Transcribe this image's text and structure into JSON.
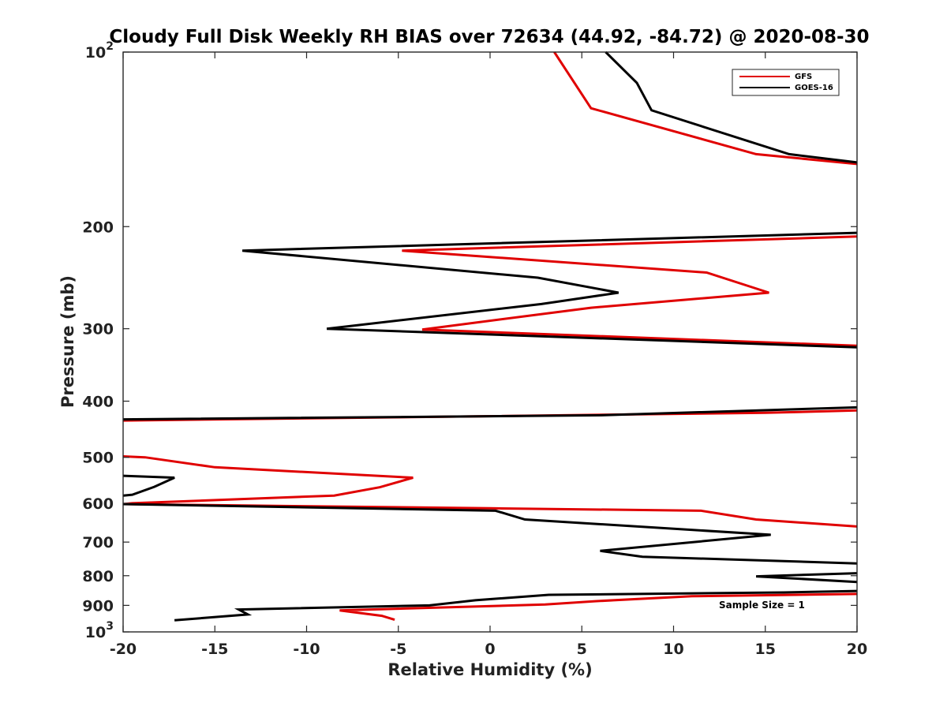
{
  "chart_data": {
    "type": "line",
    "title": "Cloudy Full Disk Weekly RH BIAS over 72634 (44.92, -84.72) @ 2020-08-30",
    "xlabel": "Relative Humidity (%)",
    "ylabel": "Pressure (mb)",
    "xlim": [
      -20,
      20
    ],
    "ylim": [
      100,
      1000
    ],
    "y_scale": "log",
    "y_reversed": true,
    "x_ticks": [
      "-20",
      "-15",
      "-10",
      "-5",
      "0",
      "5",
      "10",
      "15",
      "20"
    ],
    "y_ticks": [
      {
        "value": 100,
        "base": "10",
        "exp": "2"
      },
      {
        "value": 200,
        "base": "200",
        "exp": ""
      },
      {
        "value": 300,
        "base": "300",
        "exp": ""
      },
      {
        "value": 400,
        "base": "400",
        "exp": ""
      },
      {
        "value": 500,
        "base": "500",
        "exp": ""
      },
      {
        "value": 600,
        "base": "600",
        "exp": ""
      },
      {
        "value": 700,
        "base": "700",
        "exp": ""
      },
      {
        "value": 800,
        "base": "800",
        "exp": ""
      },
      {
        "value": 900,
        "base": "900",
        "exp": ""
      },
      {
        "value": 1000,
        "base": "10",
        "exp": "3"
      }
    ],
    "grid": false,
    "legend_position": "top-right",
    "annotation": "Sample Size = 1",
    "series": [
      {
        "name": "GFS",
        "color": "#e00000",
        "points": [
          [
            3.5,
            100
          ],
          [
            5.5,
            125
          ],
          [
            14.5,
            150
          ],
          [
            20,
            156
          ],
          [
            null,
            null
          ],
          [
            20,
            208
          ],
          [
            -4.8,
            220
          ],
          [
            11.8,
            240
          ],
          [
            15.2,
            260
          ],
          [
            5.5,
            276
          ],
          [
            -3.7,
            301
          ],
          [
            20,
            321
          ],
          [
            null,
            null
          ],
          [
            20,
            415
          ],
          [
            15,
            419
          ],
          [
            -20,
            432
          ],
          [
            null,
            null
          ],
          [
            -20,
            498
          ],
          [
            -18.8,
            500
          ],
          [
            -15,
            520
          ],
          [
            -4.2,
            542
          ],
          [
            -6.0,
            563
          ],
          [
            -8.5,
            582
          ],
          [
            -19.5,
            600
          ],
          [
            -20,
            602
          ],
          [
            0,
            612
          ],
          [
            11.5,
            618
          ],
          [
            14.5,
            640
          ],
          [
            20,
            658
          ],
          [
            null,
            null
          ],
          [
            20,
            860
          ],
          [
            11,
            868
          ],
          [
            5.8,
            885
          ],
          [
            3,
            897
          ],
          [
            -8.2,
            918
          ],
          [
            -5.9,
            938
          ],
          [
            -5.2,
            953
          ]
        ]
      },
      {
        "name": "GOES-16",
        "color": "#000000",
        "points": [
          [
            6.3,
            100
          ],
          [
            8.0,
            113
          ],
          [
            8.8,
            126
          ],
          [
            16.3,
            150
          ],
          [
            20,
            155
          ],
          [
            null,
            null
          ],
          [
            20,
            205
          ],
          [
            -13.5,
            220
          ],
          [
            2.6,
            245
          ],
          [
            7.0,
            260
          ],
          [
            2.8,
            272
          ],
          [
            -8.9,
            300
          ],
          [
            20,
            323
          ],
          [
            null,
            null
          ],
          [
            20,
            410
          ],
          [
            6,
            423
          ],
          [
            -20,
            430
          ],
          [
            null,
            null
          ],
          [
            -20,
            538
          ],
          [
            -17.2,
            542
          ],
          [
            -18.3,
            562
          ],
          [
            -19.5,
            580
          ],
          [
            -20,
            582
          ],
          [
            null,
            null
          ],
          [
            -20,
            602
          ],
          [
            0.3,
            618
          ],
          [
            1.9,
            640
          ],
          [
            15.3,
            680
          ],
          [
            6.0,
            725
          ],
          [
            8.3,
            742
          ],
          [
            20,
            762
          ],
          [
            null,
            null
          ],
          [
            20,
            792
          ],
          [
            14.5,
            802
          ],
          [
            20,
            820
          ],
          [
            null,
            null
          ],
          [
            20,
            850
          ],
          [
            16,
            855
          ],
          [
            3.2,
            863
          ],
          [
            -0.8,
            882
          ],
          [
            -3.3,
            900
          ],
          [
            -13.7,
            915
          ],
          [
            -13.2,
            933
          ],
          [
            -17.2,
            955
          ]
        ]
      }
    ]
  }
}
